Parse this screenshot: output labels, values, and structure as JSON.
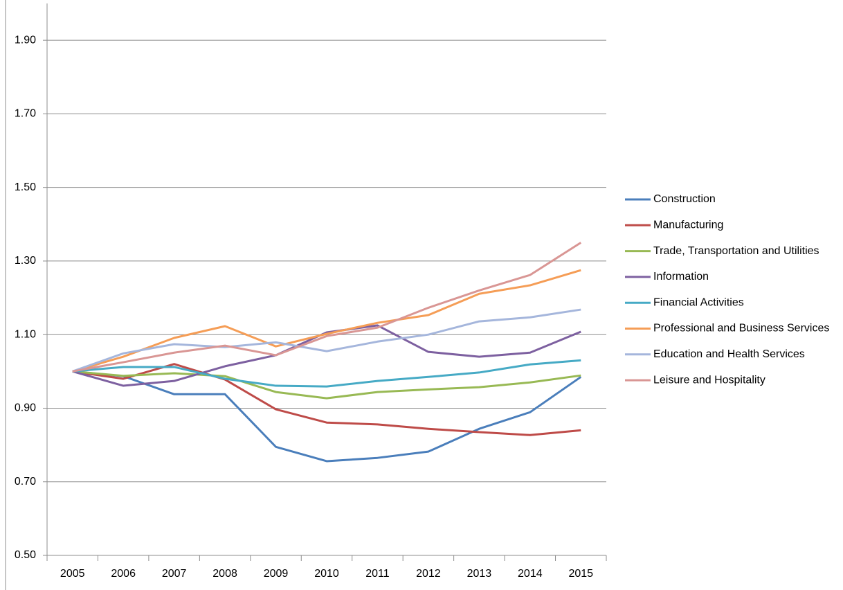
{
  "chart_data": {
    "type": "line",
    "categories": [
      "2005",
      "2006",
      "2007",
      "2008",
      "2009",
      "2010",
      "2011",
      "2012",
      "2013",
      "2014",
      "2015"
    ],
    "ylim": [
      0.5,
      2.0
    ],
    "yticks": [
      {
        "value": 0.5,
        "label": "0.50"
      },
      {
        "value": 0.7,
        "label": "0.70"
      },
      {
        "value": 0.9,
        "label": "0.90"
      },
      {
        "value": 1.1,
        "label": "1.10"
      },
      {
        "value": 1.3,
        "label": "1.30"
      },
      {
        "value": 1.5,
        "label": "1.50"
      },
      {
        "value": 1.7,
        "label": "1.70"
      },
      {
        "value": 1.9,
        "label": "1.90"
      }
    ],
    "grid": true,
    "legend": "right",
    "series": [
      {
        "name": "Construction",
        "color": "#4a7ebb",
        "values": [
          1.0,
          0.987,
          0.938,
          0.938,
          0.795,
          0.756,
          0.765,
          0.782,
          0.844,
          0.889,
          0.985
        ]
      },
      {
        "name": "Manufacturing",
        "color": "#be4b48",
        "values": [
          1.0,
          0.98,
          1.02,
          0.978,
          0.897,
          0.861,
          0.856,
          0.844,
          0.835,
          0.827,
          0.84
        ]
      },
      {
        "name": "Trade, Transportation and Utilities",
        "color": "#98b954",
        "values": [
          1.0,
          0.988,
          0.995,
          0.987,
          0.944,
          0.927,
          0.944,
          0.951,
          0.957,
          0.97,
          0.989
        ]
      },
      {
        "name": "Information",
        "color": "#7d60a0",
        "values": [
          1.0,
          0.961,
          0.974,
          1.014,
          1.044,
          1.106,
          1.125,
          1.053,
          1.04,
          1.051,
          1.108
        ]
      },
      {
        "name": "Financial Activities",
        "color": "#46aac5",
        "values": [
          1.0,
          1.012,
          1.012,
          0.98,
          0.961,
          0.959,
          0.974,
          0.985,
          0.997,
          1.019,
          1.03
        ]
      },
      {
        "name": "Professional and Business Services",
        "color": "#f59d56",
        "values": [
          1.0,
          1.04,
          1.091,
          1.123,
          1.068,
          1.102,
          1.132,
          1.153,
          1.211,
          1.234,
          1.275
        ]
      },
      {
        "name": "Education and Health Services",
        "color": "#a5b6dc",
        "values": [
          1.0,
          1.049,
          1.074,
          1.066,
          1.079,
          1.055,
          1.081,
          1.1,
          1.136,
          1.147,
          1.168
        ]
      },
      {
        "name": "Leisure and Hospitality",
        "color": "#d99694",
        "values": [
          1.0,
          1.025,
          1.051,
          1.07,
          1.044,
          1.096,
          1.119,
          1.173,
          1.22,
          1.262,
          1.35
        ]
      }
    ]
  }
}
